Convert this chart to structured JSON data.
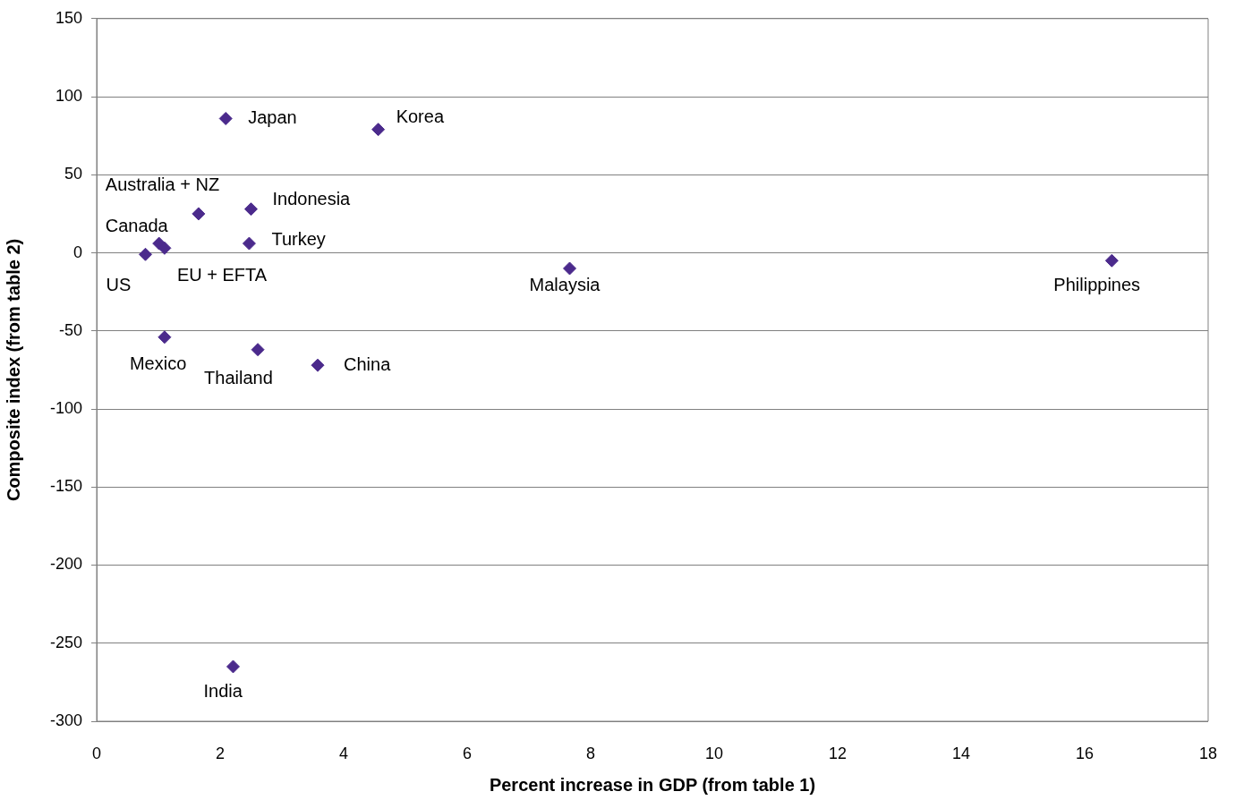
{
  "chart_data": {
    "type": "scatter",
    "xlabel": "Percent increase in GDP (from table 1)",
    "ylabel": "Composite index (from table 2)",
    "series": [
      {
        "color": "#4b2a8c",
        "x": [
          2.09,
          4.56,
          1.65,
          2.5,
          2.47,
          1.01,
          1.1,
          0.79,
          7.66,
          16.44,
          1.1,
          2.61,
          3.58,
          2.21
        ],
        "values": [
          86,
          79,
          25,
          28,
          6,
          6,
          3,
          -1,
          -10,
          -5,
          -54,
          -62,
          -72,
          -265
        ]
      }
    ],
    "annotations": [
      {
        "text": "Japan",
        "x": 2.09,
        "y": 86
      },
      {
        "text": "Korea",
        "x": 4.56,
        "y": 79
      },
      {
        "text": "Australia + NZ",
        "x": 1.65,
        "y": 25
      },
      {
        "text": "Indonesia",
        "x": 2.5,
        "y": 28
      },
      {
        "text": "Turkey",
        "x": 2.47,
        "y": 6
      },
      {
        "text": "Canada",
        "x": 1.01,
        "y": 6
      },
      {
        "text": "EU + EFTA",
        "x": 1.1,
        "y": 3
      },
      {
        "text": "US",
        "x": 0.79,
        "y": -1
      },
      {
        "text": "Malaysia",
        "x": 7.66,
        "y": -10
      },
      {
        "text": "Philippines",
        "x": 16.44,
        "y": -5
      },
      {
        "text": "Mexico",
        "x": 1.1,
        "y": -54
      },
      {
        "text": "Thailand",
        "x": 2.61,
        "y": -62
      },
      {
        "text": "China",
        "x": 3.58,
        "y": -72
      },
      {
        "text": "India",
        "x": 2.21,
        "y": -265
      }
    ],
    "xlim": [
      0,
      18
    ],
    "xticks": [
      0,
      2,
      4,
      6,
      8,
      10,
      12,
      14,
      16,
      18
    ],
    "ylim": [
      -300,
      150
    ],
    "yticks": [
      -300,
      -250,
      -200,
      -150,
      -100,
      -50,
      0,
      50,
      100,
      150
    ],
    "grid": "y",
    "legend": false,
    "marker": "diamond"
  }
}
